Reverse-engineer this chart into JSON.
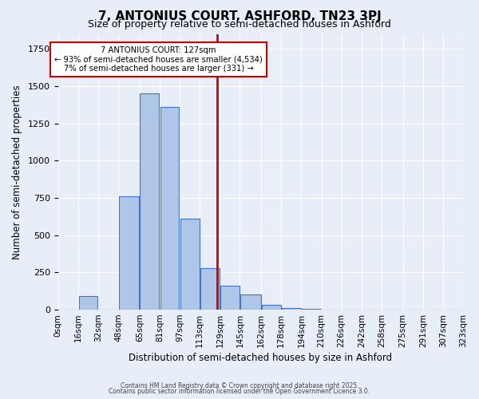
{
  "title": "7, ANTONIUS COURT, ASHFORD, TN23 3PJ",
  "subtitle": "Size of property relative to semi-detached houses in Ashford",
  "xlabel": "Distribution of semi-detached houses by size in Ashford",
  "ylabel": "Number of semi-detached properties",
  "property_size": 127,
  "annotation_line1": "7 ANTONIUS COURT: 127sqm",
  "annotation_line2": "← 93% of semi-detached houses are smaller (4,534)",
  "annotation_line3": "7% of semi-detached houses are larger (331) →",
  "bins": [
    0,
    16,
    32,
    48,
    65,
    81,
    97,
    113,
    129,
    145,
    162,
    178,
    194,
    210,
    226,
    242,
    258,
    275,
    291,
    307,
    323
  ],
  "bin_labels": [
    "0sqm",
    "16sqm",
    "32sqm",
    "48sqm",
    "65sqm",
    "81sqm",
    "97sqm",
    "113sqm",
    "129sqm",
    "145sqm",
    "162sqm",
    "178sqm",
    "194sqm",
    "210sqm",
    "226sqm",
    "242sqm",
    "258sqm",
    "275sqm",
    "291sqm",
    "307sqm",
    "323sqm"
  ],
  "bar_heights": [
    0,
    90,
    0,
    760,
    1450,
    1360,
    610,
    280,
    160,
    100,
    30,
    10,
    5,
    3,
    2,
    1,
    1,
    0,
    0,
    0
  ],
  "bar_color": "#aec6e8",
  "bar_edge_color": "#4472c4",
  "property_line_color": "#cc0000",
  "annotation_box_edge_color": "#cc0000",
  "background_color": "#e8eef7",
  "ylim": [
    0,
    1850
  ],
  "footer_line1": "Contains HM Land Registry data © Crown copyright and database right 2025.",
  "footer_line2": "Contains public sector information licensed under the Open Government Licence 3.0."
}
